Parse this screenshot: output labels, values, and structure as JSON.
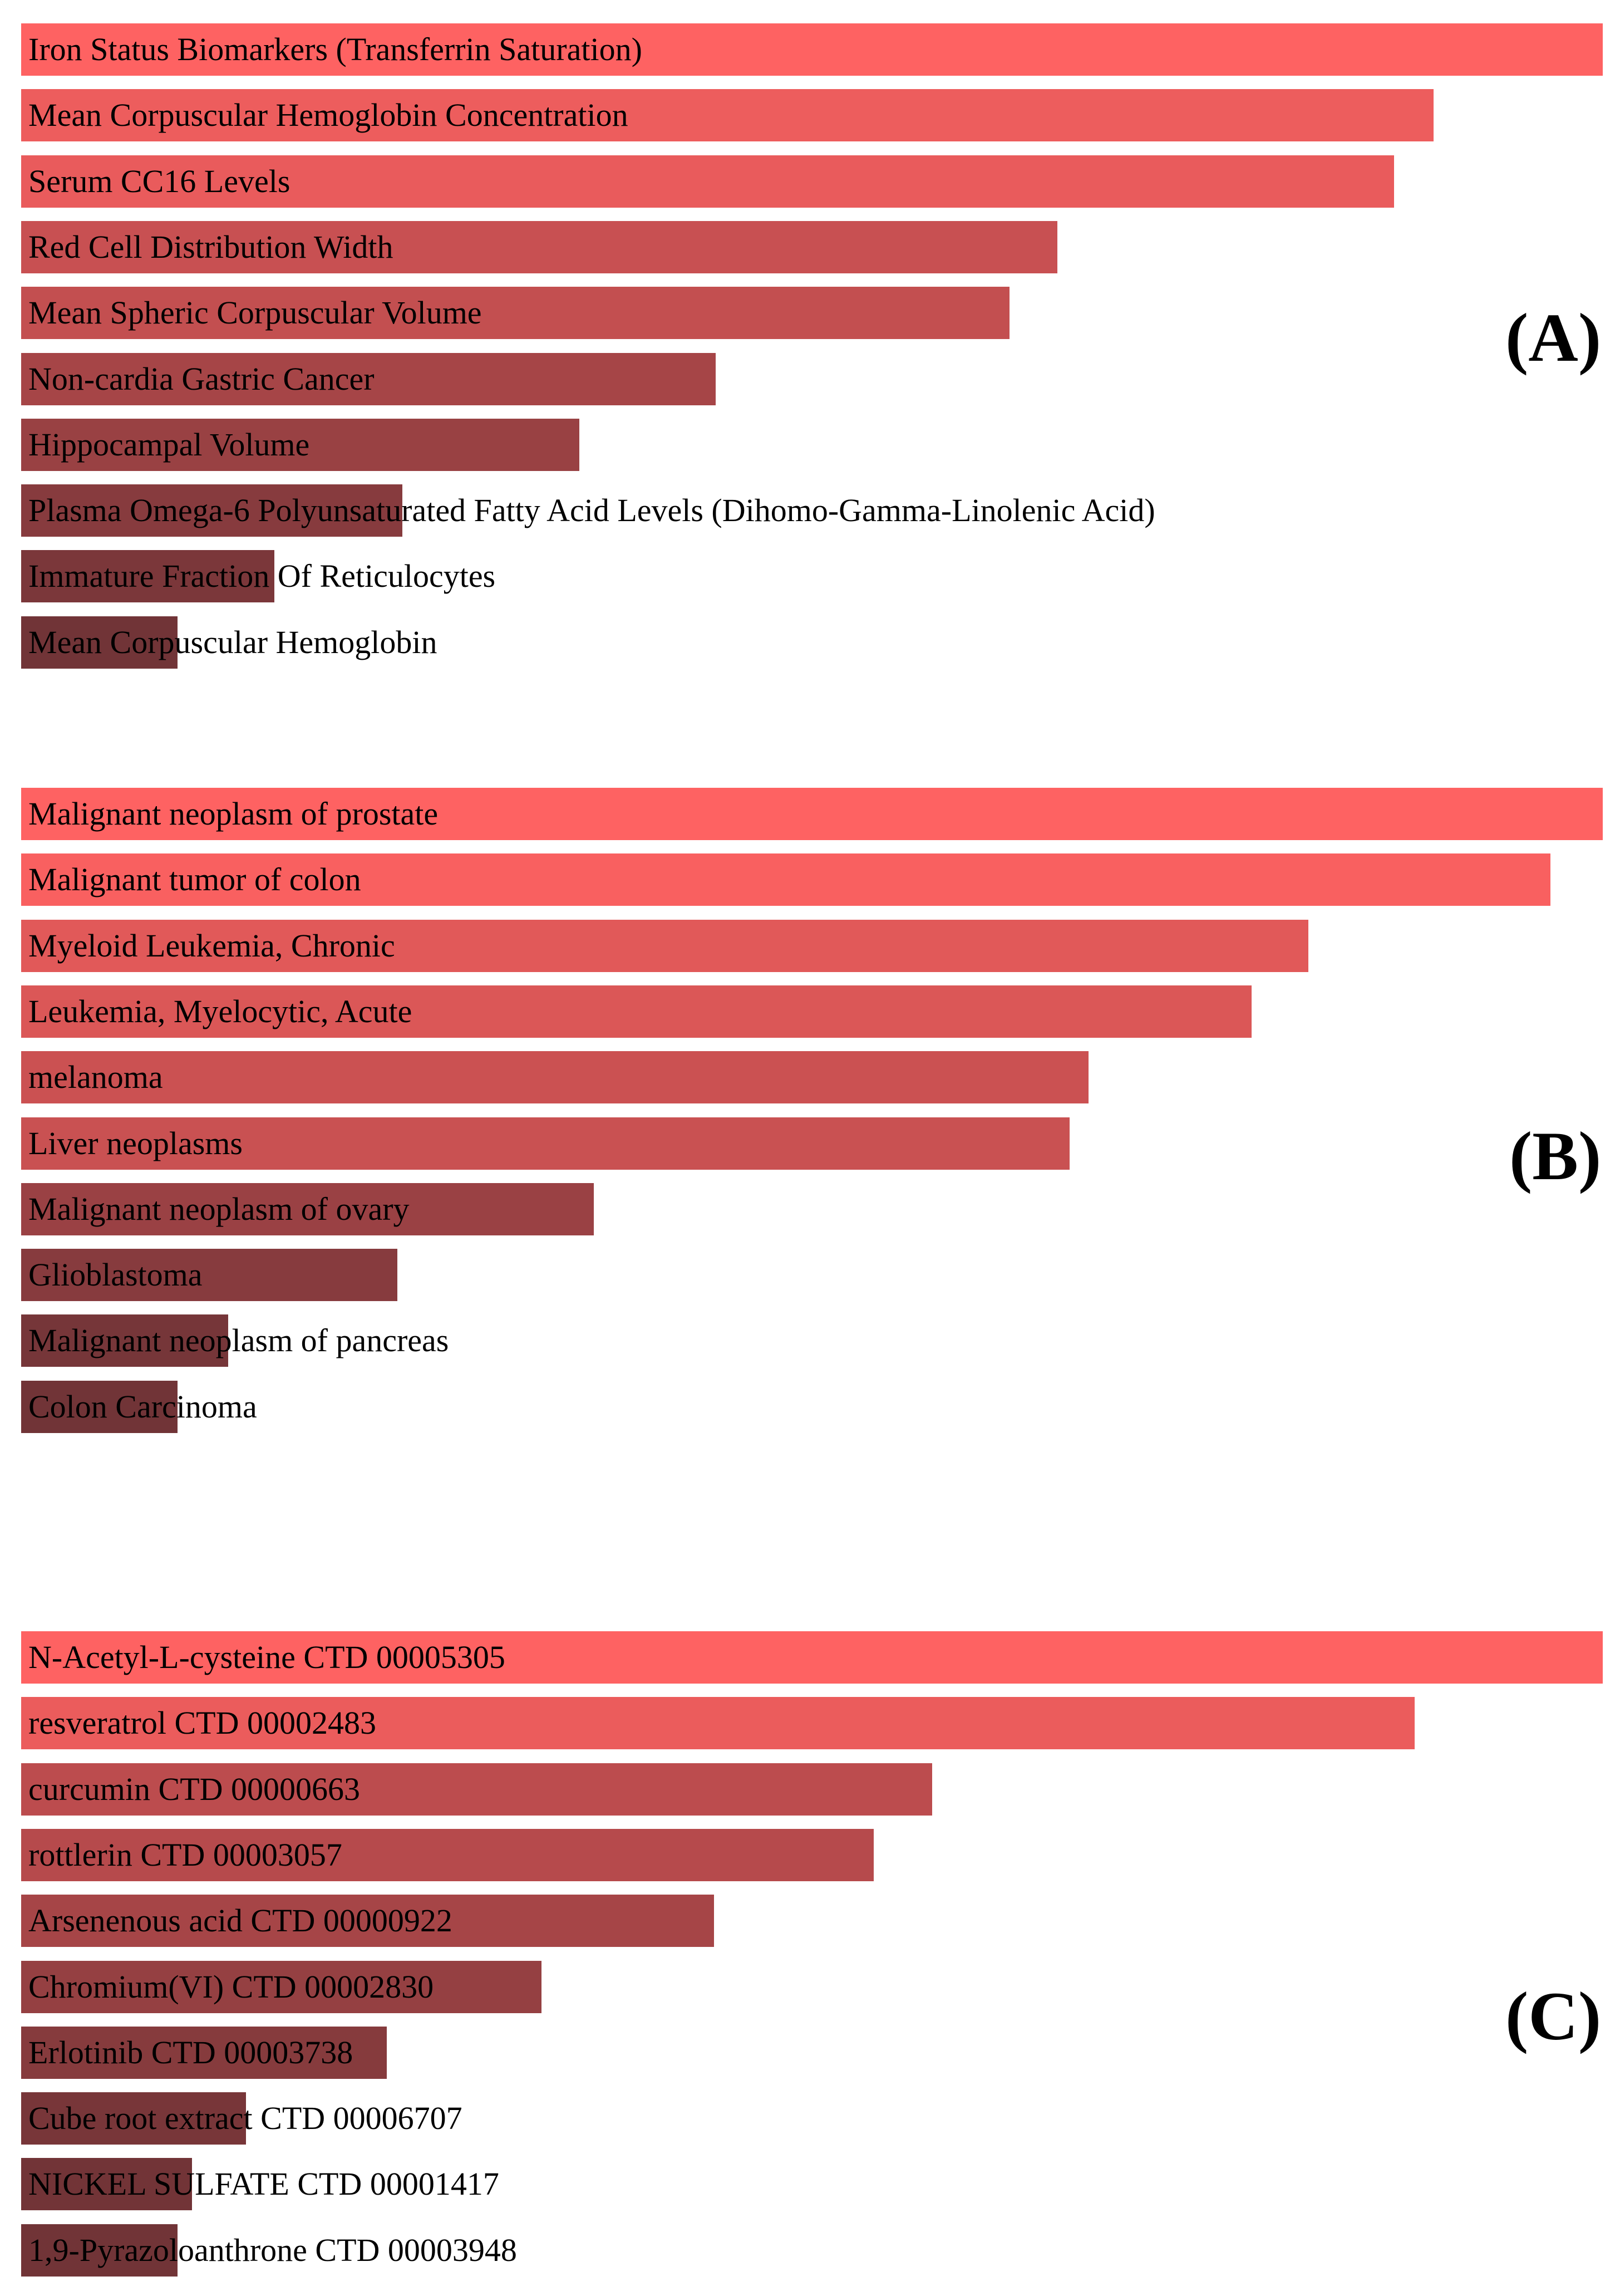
{
  "chart_data": [
    {
      "type": "bar",
      "orientation": "horizontal",
      "panel_label": "(A)",
      "categories": [
        "Iron Status Biomarkers (Transferrin Saturation)",
        "Mean Corpuscular Hemoglobin Concentration",
        "Serum CC16 Levels",
        "Red Cell Distribution Width",
        "Mean Spheric Corpuscular Volume",
        "Non-cardia Gastric Cancer",
        "Hippocampal Volume",
        "Plasma Omega-6 Polyunsaturated Fatty Acid Levels (Dihomo-Gamma-Linolenic Acid)",
        "Immature Fraction Of Reticulocytes",
        "Mean Corpuscular Hemoglobin"
      ],
      "values": [
        1.0,
        0.893,
        0.868,
        0.655,
        0.625,
        0.439,
        0.353,
        0.241,
        0.16,
        0.099
      ]
    },
    {
      "type": "bar",
      "orientation": "horizontal",
      "panel_label": "(B)",
      "categories": [
        "Malignant neoplasm of prostate",
        "Malignant tumor of colon",
        "Myeloid Leukemia, Chronic",
        "Leukemia, Myelocytic, Acute",
        "melanoma",
        "Liver neoplasms",
        "Malignant neoplasm of ovary",
        "Glioblastoma",
        "Malignant neoplasm of pancreas",
        "Colon Carcinoma"
      ],
      "values": [
        1.0,
        0.967,
        0.814,
        0.778,
        0.675,
        0.663,
        0.362,
        0.238,
        0.131,
        0.099
      ]
    },
    {
      "type": "bar",
      "orientation": "horizontal",
      "panel_label": "(C)",
      "categories": [
        "N-Acetyl-L-cysteine CTD 00005305",
        "resveratrol CTD 00002483",
        "curcumin CTD 00000663",
        "rottlerin CTD 00003057",
        "Arsenenous acid CTD 00000922",
        "Chromium(VI) CTD 00002830",
        "Erlotinib CTD 00003738",
        "Cube root extract CTD 00006707",
        "NICKEL SULFATE CTD 00001417",
        "1,9-Pyrazoloanthrone CTD 00003948"
      ],
      "values": [
        1.0,
        0.881,
        0.576,
        0.539,
        0.438,
        0.329,
        0.231,
        0.142,
        0.108,
        0.099
      ]
    }
  ],
  "colors": {
    "max": "#fe6262",
    "min": "#713437"
  }
}
